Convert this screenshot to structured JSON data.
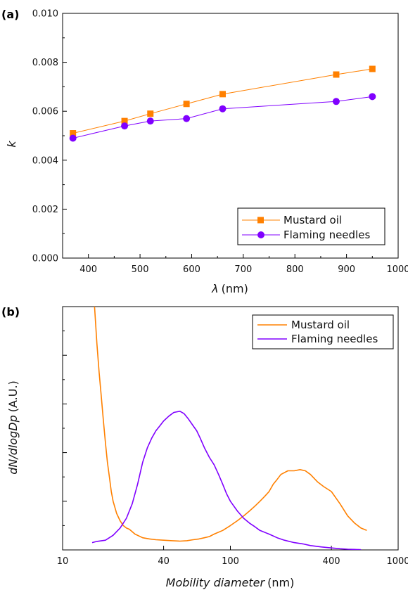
{
  "chart_data": [
    {
      "panel_label": "(a)",
      "type": "line",
      "xlabel_symbol": "λ",
      "xlabel_unit": "(nm)",
      "ylabel": "k",
      "xlim": [
        350,
        1000
      ],
      "ylim": [
        0,
        0.01
      ],
      "xticks": [
        "400",
        "500",
        "600",
        "700",
        "800",
        "900",
        "1000"
      ],
      "yticks": [
        "0.000",
        "0.002",
        "0.004",
        "0.006",
        "0.008",
        "0.010"
      ],
      "legend_position": "bottom-right",
      "grid": false,
      "series": [
        {
          "name": "Mustard oil",
          "color": "#ff8000",
          "marker": "square",
          "x": [
            370,
            470,
            520,
            590,
            660,
            880,
            950
          ],
          "y": [
            0.0051,
            0.0056,
            0.0059,
            0.0063,
            0.0067,
            0.0075,
            0.00773
          ]
        },
        {
          "name": "Flaming needles",
          "color": "#8000ff",
          "marker": "circle",
          "x": [
            370,
            470,
            520,
            590,
            660,
            880,
            950
          ],
          "y": [
            0.0049,
            0.0054,
            0.0056,
            0.0057,
            0.0061,
            0.0064,
            0.0066
          ]
        }
      ]
    },
    {
      "panel_label": "(b)",
      "type": "line",
      "xscale": "log",
      "xlabel_italic": "Mobility diameter",
      "xlabel_unit": "(nm)",
      "ylabel_italic": "dN/dlogDp",
      "ylabel_unit": "(A.U.)",
      "xlim": [
        10,
        1000
      ],
      "ylim": [
        0,
        100
      ],
      "xticks": [
        "10",
        "40",
        "100",
        "400",
        "1000"
      ],
      "legend_position": "top-right",
      "grid": false,
      "series": [
        {
          "name": "Mustard oil",
          "color": "#ff8000",
          "x": [
            15.5,
            16,
            16.5,
            17,
            17.5,
            18,
            18.5,
            19,
            19.5,
            20,
            21,
            22,
            23,
            24,
            25,
            27,
            30,
            33,
            36,
            40,
            45,
            50,
            55,
            60,
            65,
            70,
            75,
            80,
            90,
            100,
            110,
            120,
            130,
            140,
            150,
            160,
            170,
            180,
            190,
            200,
            220,
            240,
            260,
            280,
            300,
            330,
            360,
            400,
            450,
            500,
            550,
            600,
            650
          ],
          "y": [
            100,
            85,
            73,
            63,
            53,
            44,
            36,
            30,
            24,
            20,
            15,
            12,
            10,
            9,
            8.5,
            6.5,
            5,
            4.5,
            4.2,
            4,
            3.8,
            3.6,
            3.8,
            4.2,
            4.5,
            5,
            5.5,
            6.5,
            8,
            10,
            12,
            14,
            16,
            18,
            20,
            22,
            24,
            27,
            29,
            31,
            32.5,
            32.5,
            33,
            32.5,
            31,
            28,
            26,
            24,
            19,
            14,
            11,
            9,
            8
          ]
        },
        {
          "name": "Flaming needles",
          "color": "#8000ff",
          "x": [
            15,
            16,
            18,
            20,
            22,
            24,
            26,
            28,
            30,
            32,
            34,
            36,
            38,
            40,
            43,
            46,
            50,
            53,
            56,
            60,
            63,
            66,
            70,
            75,
            80,
            85,
            90,
            95,
            100,
            110,
            120,
            130,
            140,
            150,
            170,
            190,
            210,
            240,
            270,
            300,
            350,
            400,
            450,
            500,
            550,
            600
          ],
          "y": [
            3,
            3.5,
            4,
            6,
            9,
            13,
            19,
            27,
            36,
            42,
            46,
            49,
            51,
            53,
            55,
            56.5,
            57,
            56,
            54,
            51,
            49,
            46,
            42,
            38,
            35,
            31,
            27,
            23,
            20,
            16,
            13,
            11,
            9.5,
            8,
            6.5,
            5,
            4,
            3,
            2.5,
            1.8,
            1.2,
            0.8,
            0.5,
            0.3,
            0.2,
            0.1
          ]
        }
      ]
    }
  ]
}
